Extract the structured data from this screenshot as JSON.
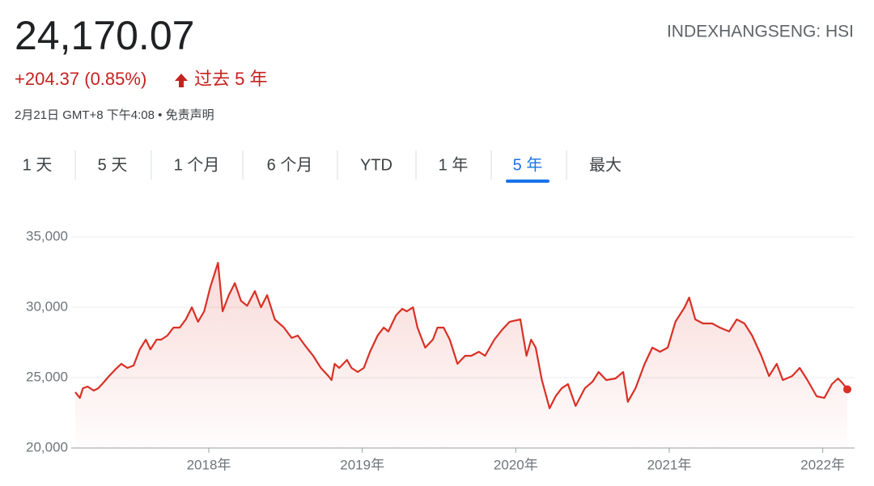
{
  "header": {
    "price": "24,170.07",
    "change": "+204.37 (0.85%)",
    "period": "过去 5 年",
    "timestamp": "2月21日 GMT+8 下午4:08 • 免责声明",
    "ticker": "INDEXHANGSENG: HSI"
  },
  "tabs": [
    "1 天",
    "5 天",
    "1 个月",
    "6 个月",
    "YTD",
    "1 年",
    "5 年",
    "最大"
  ],
  "selected_tab": 6,
  "chart_data": {
    "type": "line",
    "color": "#d93025",
    "x": [
      2017.13,
      2017.16,
      2017.18,
      2017.21,
      2017.25,
      2017.28,
      2017.31,
      2017.35,
      2017.39,
      2017.43,
      2017.47,
      2017.51,
      2017.55,
      2017.59,
      2017.62,
      2017.66,
      2017.69,
      2017.73,
      2017.77,
      2017.81,
      2017.85,
      2017.89,
      2017.93,
      2017.97,
      2018.01,
      2018.06,
      2018.09,
      2018.13,
      2018.17,
      2018.21,
      2018.25,
      2018.3,
      2018.34,
      2018.38,
      2018.43,
      2018.49,
      2018.54,
      2018.58,
      2018.63,
      2018.68,
      2018.73,
      2018.78,
      2018.8,
      2018.82,
      2018.85,
      2018.9,
      2018.93,
      2018.97,
      2019.01,
      2019.05,
      2019.1,
      2019.14,
      2019.17,
      2019.22,
      2019.26,
      2019.29,
      2019.33,
      2019.36,
      2019.41,
      2019.46,
      2019.49,
      2019.53,
      2019.57,
      2019.62,
      2019.67,
      2019.71,
      2019.76,
      2019.8,
      2019.86,
      2019.91,
      2019.96,
      2020.03,
      2020.07,
      2020.1,
      2020.13,
      2020.17,
      2020.22,
      2020.26,
      2020.3,
      2020.34,
      2020.39,
      2020.45,
      2020.5,
      2020.54,
      2020.59,
      2020.65,
      2020.7,
      2020.73,
      2020.78,
      2020.84,
      2020.89,
      2020.94,
      2020.99,
      2021.04,
      2021.1,
      2021.13,
      2021.17,
      2021.22,
      2021.28,
      2021.33,
      2021.39,
      2021.44,
      2021.49,
      2021.54,
      2021.6,
      2021.65,
      2021.7,
      2021.74,
      2021.8,
      2021.85,
      2021.9,
      2021.96,
      2022.01,
      2022.06,
      2022.1,
      2022.13,
      2022.16
    ],
    "values": [
      23970,
      23560,
      24250,
      24370,
      24080,
      24250,
      24600,
      25110,
      25570,
      25980,
      25690,
      25860,
      27010,
      27700,
      27010,
      27700,
      27700,
      27990,
      28560,
      28560,
      29140,
      30000,
      28970,
      29710,
      31440,
      33160,
      29710,
      30860,
      31720,
      30460,
      30110,
      31150,
      30000,
      30860,
      29140,
      28560,
      27820,
      27990,
      27240,
      26550,
      25690,
      25110,
      24830,
      25980,
      25690,
      26260,
      25690,
      25400,
      25690,
      26840,
      27990,
      28560,
      28280,
      29430,
      29890,
      29710,
      30000,
      28560,
      27130,
      27700,
      28560,
      28560,
      27700,
      25980,
      26550,
      26550,
      26840,
      26550,
      27700,
      28390,
      28970,
      29140,
      26550,
      27700,
      27130,
      24830,
      22820,
      23680,
      24250,
      24540,
      22990,
      24250,
      24710,
      25400,
      24830,
      24940,
      25400,
      23280,
      24250,
      25980,
      27130,
      26840,
      27130,
      28970,
      30000,
      30690,
      29140,
      28850,
      28850,
      28560,
      28280,
      29140,
      28850,
      27990,
      26550,
      25110,
      25980,
      24830,
      25110,
      25690,
      24830,
      23680,
      23560,
      24540,
      24940,
      24600,
      24170.07
    ],
    "xlim": [
      2017.13,
      2022.16
    ],
    "ylim": [
      20000,
      35000
    ],
    "yticks": [
      {
        "value": 20000,
        "label": "20,000"
      },
      {
        "value": 25000,
        "label": "25,000"
      },
      {
        "value": 30000,
        "label": "30,000"
      },
      {
        "value": 35000,
        "label": "35,000"
      }
    ],
    "xticks": [
      {
        "value": 2018,
        "label": "2018年"
      },
      {
        "value": 2019,
        "label": "2019年"
      },
      {
        "value": 2020,
        "label": "2020年"
      },
      {
        "value": 2021,
        "label": "2021年"
      },
      {
        "value": 2022,
        "label": "2022年"
      }
    ],
    "grid": true,
    "area_fill": true
  }
}
